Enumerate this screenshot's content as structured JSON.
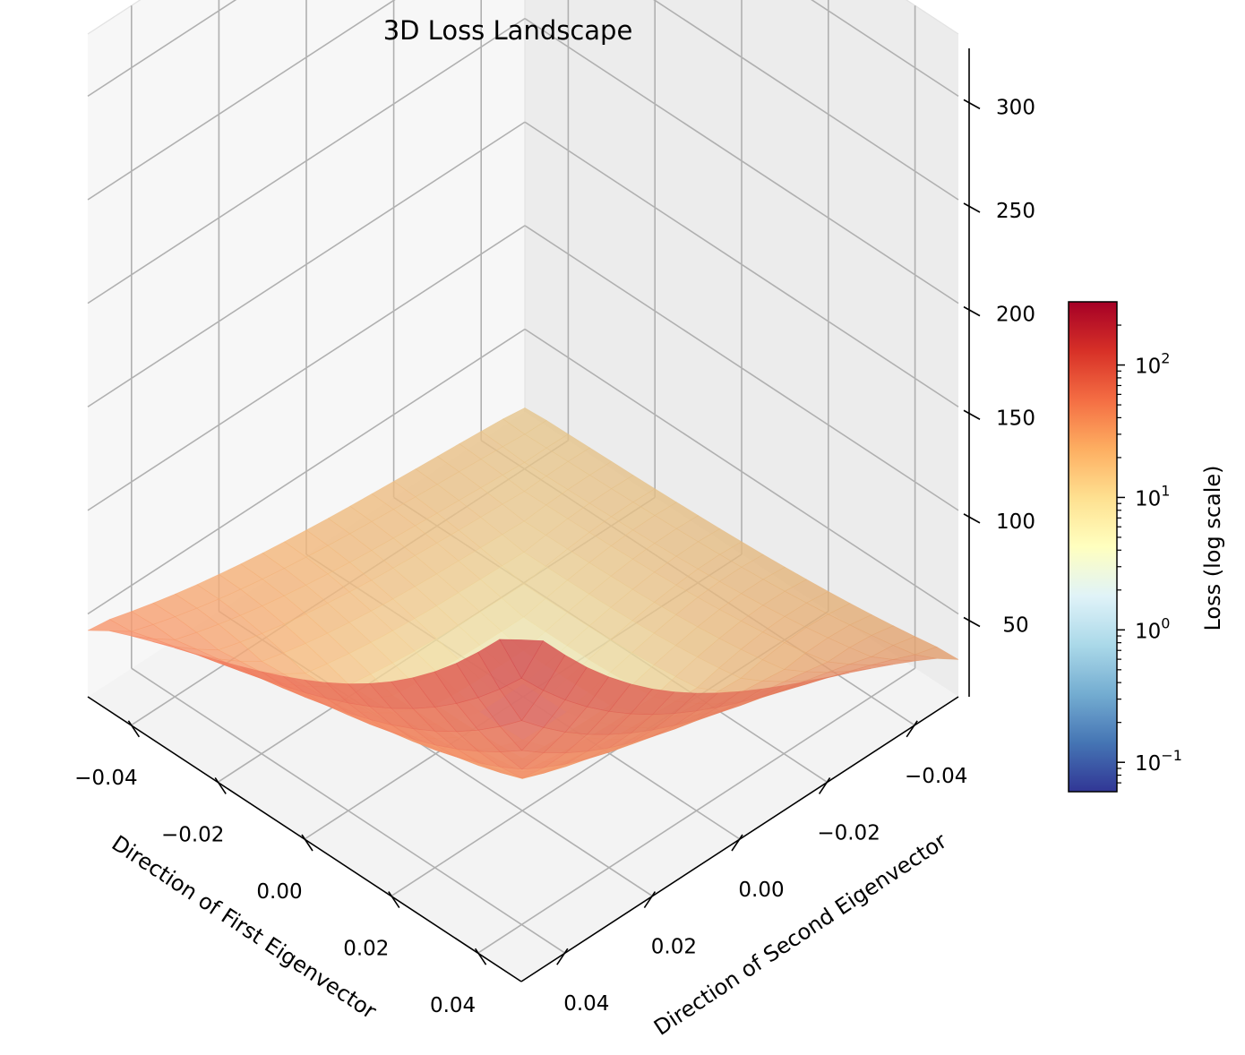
{
  "chart_data": {
    "type": "surface3d",
    "title": "3D Loss Landscape",
    "xlabel": "Direction of First Eigenvector",
    "ylabel": "Direction of Second Eigenvector",
    "zlabel": "",
    "x_ticks": [
      "0.04",
      "0.02",
      "0.00",
      "−0.02",
      "−0.04"
    ],
    "x_tick_values": [
      0.04,
      0.02,
      0.0,
      -0.02,
      -0.04
    ],
    "y_ticks": [
      "−0.04",
      "−0.02",
      "0.00",
      "0.02",
      "0.04"
    ],
    "y_tick_values": [
      -0.04,
      -0.02,
      0.0,
      0.02,
      0.04
    ],
    "z_ticks": [
      "50",
      "100",
      "150",
      "200",
      "250",
      "300"
    ],
    "z_tick_values": [
      50,
      100,
      150,
      200,
      250,
      300
    ],
    "xlim": [
      -0.05,
      0.05
    ],
    "ylim": [
      -0.05,
      0.05
    ],
    "zlim": [
      10,
      330
    ],
    "grid": true,
    "colormap": "RdYlBu_r",
    "surface_alpha": 0.8,
    "grid_points": 21,
    "surface": {
      "x_range": [
        -0.05,
        0.05
      ],
      "y_range": [
        -0.05,
        0.05
      ],
      "min_loss": 0.5,
      "corner_values": {
        "x_min_y_min": 12,
        "x_max_y_min": 28,
        "x_min_y_max": 42,
        "x_max_y_max": 175
      }
    },
    "colorbar": {
      "label": "Loss (log scale)",
      "scale": "log",
      "range": [
        0.06,
        300
      ],
      "ticks": [
        {
          "value": 0.1,
          "base": "10",
          "exp": "−1"
        },
        {
          "value": 1,
          "base": "10",
          "exp": "0"
        },
        {
          "value": 10,
          "base": "10",
          "exp": "1"
        },
        {
          "value": 100,
          "base": "10",
          "exp": "2"
        }
      ]
    }
  }
}
